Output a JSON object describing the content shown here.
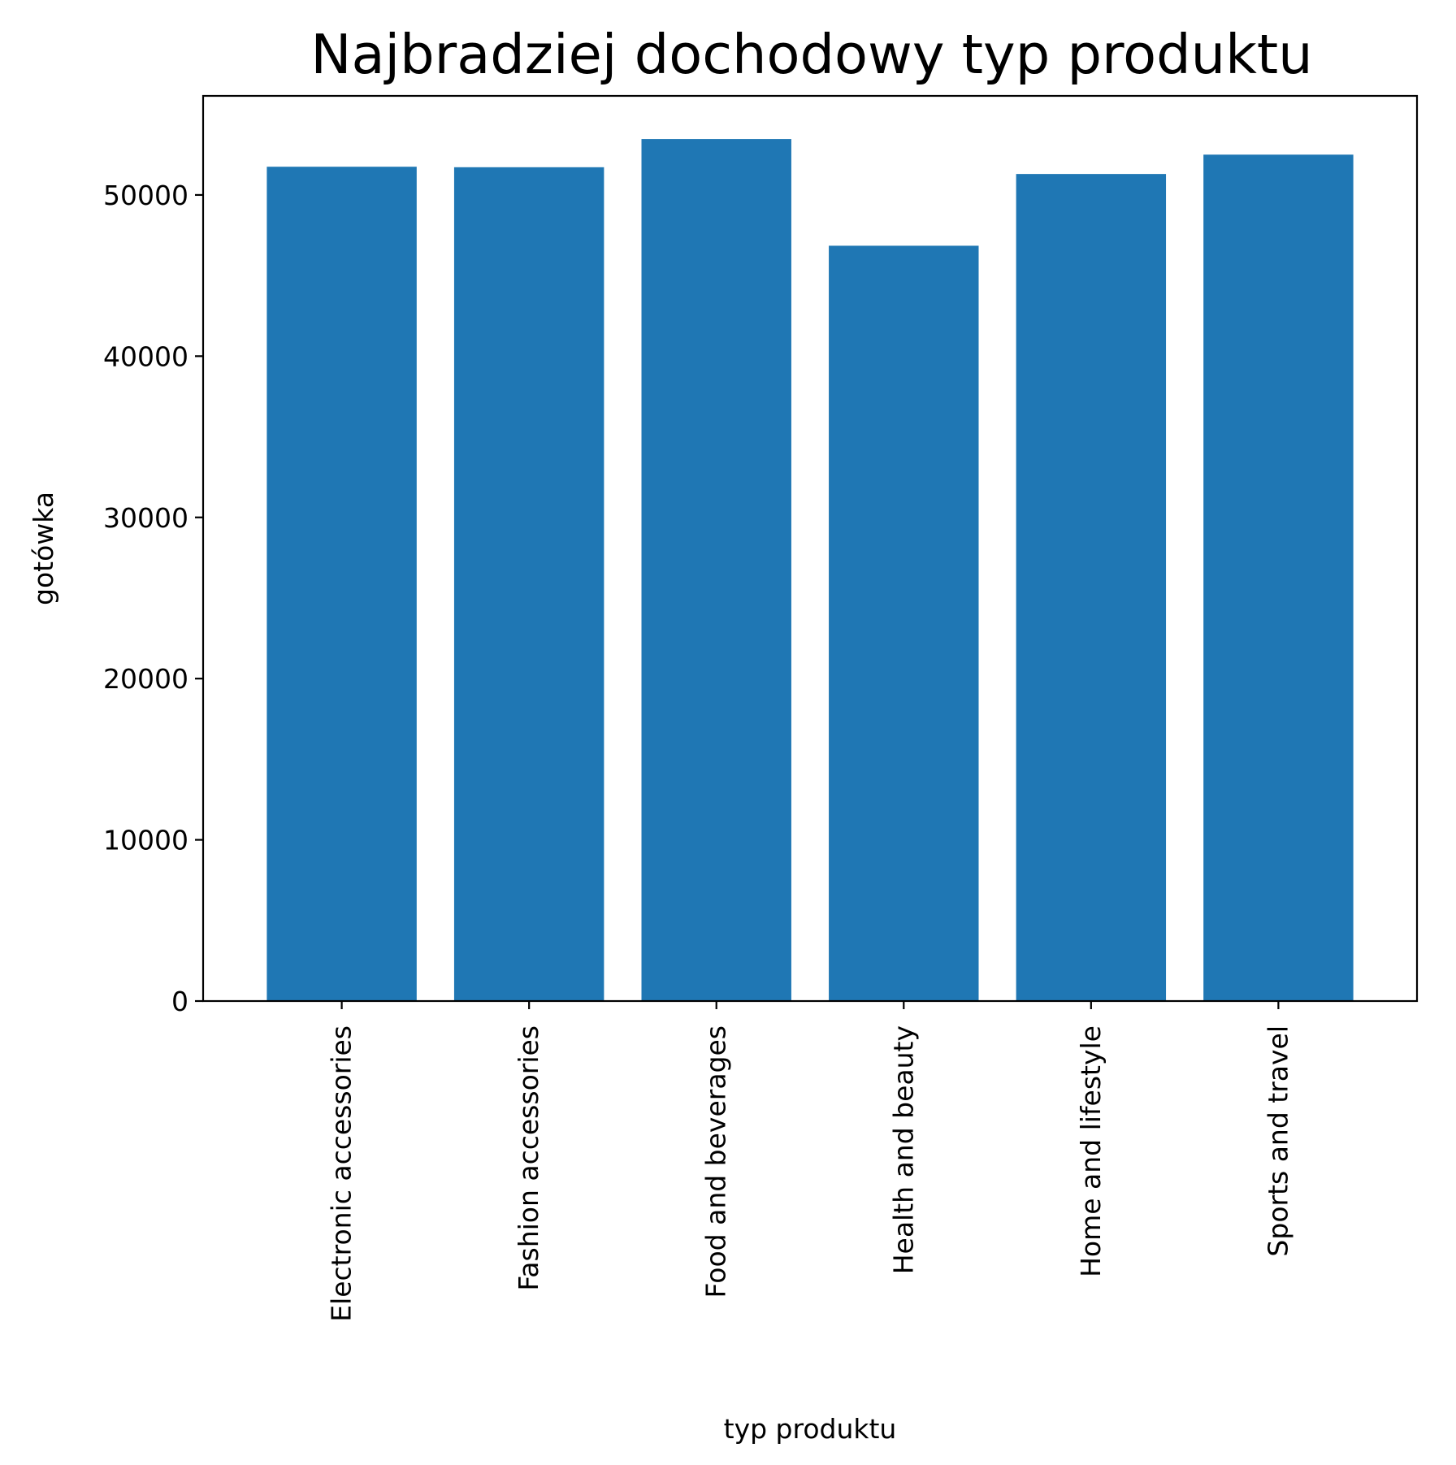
{
  "chart_data": {
    "type": "bar",
    "title": "Najbradziej dochodowy typ produktu",
    "xlabel": "typ produktu",
    "ylabel": "gotówka",
    "categories": [
      "Electronic accessories",
      "Fashion accessories",
      "Food and beverages",
      "Health and beauty",
      "Home and lifestyle",
      "Sports and travel"
    ],
    "values": [
      51750,
      51720,
      53470,
      46850,
      51300,
      52500
    ],
    "ylim": [
      0,
      56145
    ],
    "yticks": [
      0,
      10000,
      20000,
      30000,
      40000,
      50000
    ],
    "ytick_labels": [
      "0",
      "10000",
      "20000",
      "30000",
      "40000",
      "50000"
    ],
    "grid": false,
    "legend": "none",
    "bar_color": "#1f77b4"
  }
}
